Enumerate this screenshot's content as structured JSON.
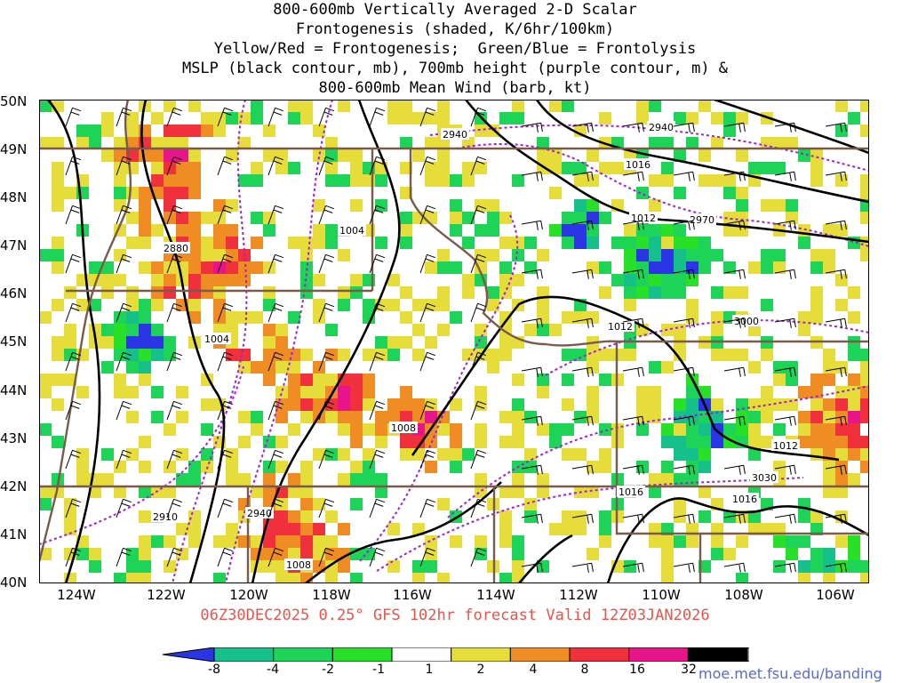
{
  "title_lines": [
    "800-600mb Vertically Averaged 2-D Scalar",
    "Frontogenesis (shaded, K/6hr/100km)",
    "Yellow/Red = Frontogenesis;  Green/Blue = Frontolysis",
    "MSLP (black contour, mb), 700mb height (purple contour, m) &",
    "800-600mb Mean Wind (barb, kt)"
  ],
  "lat_labels": [
    "50N",
    "49N",
    "48N",
    "47N",
    "46N",
    "45N",
    "44N",
    "43N",
    "42N",
    "41N",
    "40N"
  ],
  "lon_labels": [
    "124W",
    "122W",
    "120W",
    "118W",
    "116W",
    "114W",
    "112W",
    "110W",
    "108W",
    "106W"
  ],
  "footer": "06Z30DEC2025 0.25° GFS 102hr forecast Valid 12Z03JAN2026",
  "colorbar": {
    "ticks": [
      "-8",
      "-4",
      "-2",
      "-1",
      "1",
      "2",
      "4",
      "8",
      "16",
      "32"
    ],
    "colors": [
      "#2b35e6",
      "#16c08a",
      "#1ed458",
      "#28e028",
      "#ffffff",
      "#e6dc3a",
      "#f08c24",
      "#f0303c",
      "#e8148c",
      "#000000",
      "#a0a0a0"
    ]
  },
  "url": "moe.met.fsu.edu/banding",
  "pressure_labels": [
    "1004",
    "1004",
    "1008",
    "1008",
    "1012",
    "1012",
    "1012",
    "1016",
    "1016",
    "1016"
  ],
  "height_labels": [
    "2880",
    "2940",
    "2940",
    "2970",
    "3000",
    "3030",
    "2910",
    "2940"
  ]
}
